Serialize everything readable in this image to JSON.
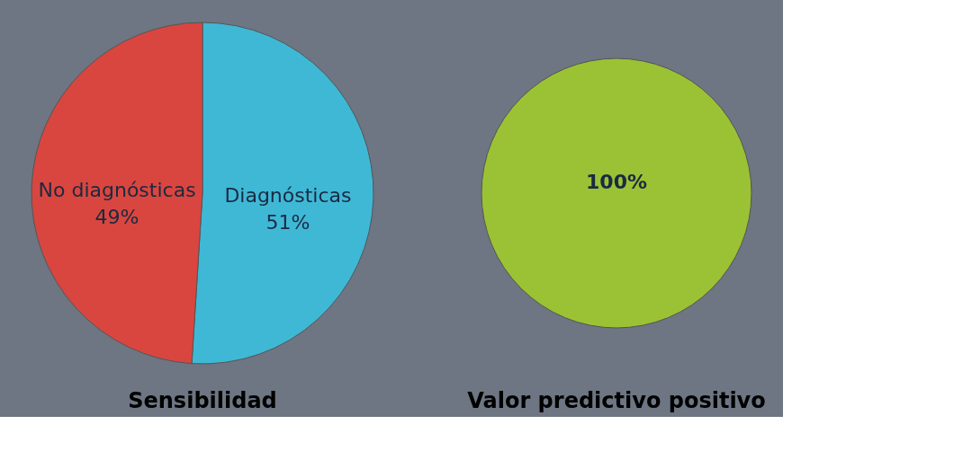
{
  "chart_data": [
    {
      "type": "pie",
      "title": "Sensibilidad",
      "categories": [
        "Diagnósticas",
        "No diagnósticas"
      ],
      "values": [
        51,
        49
      ],
      "colors": [
        "#3fb8d6",
        "#d9463f"
      ],
      "value_labels": [
        "51%",
        "49%"
      ]
    },
    {
      "type": "pie",
      "title": "Valor predictivo positivo",
      "categories": [
        null
      ],
      "values": [
        100
      ],
      "colors": [
        "#9bc234"
      ],
      "value_labels": [
        "100%"
      ]
    }
  ]
}
